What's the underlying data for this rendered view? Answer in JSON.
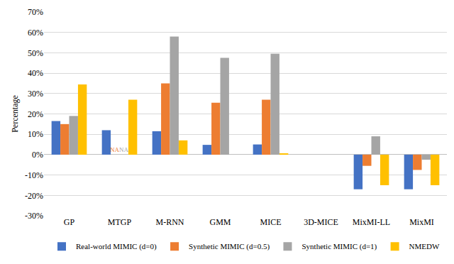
{
  "chart_data": {
    "type": "bar",
    "y_label": "Percentage",
    "categories": [
      "GP",
      "MTGP",
      "M-RNN",
      "GMM",
      "MICE",
      "3D-MICE",
      "MixMI-LL",
      "MixMI"
    ],
    "series": [
      {
        "name": "Real-world MIMIC (d=0)",
        "color": "#4472c4",
        "values": [
          16.5,
          12,
          11.5,
          4.8,
          5,
          0,
          -17,
          -17
        ]
      },
      {
        "name": "Synthetic MIMIC (d=0.5)",
        "color": "#ed7d31",
        "values": [
          15,
          null,
          35,
          25.5,
          27,
          0,
          -5.5,
          -7.5
        ]
      },
      {
        "name": "Synthetic MIMIC (d=1)",
        "color": "#a5a5a5",
        "values": [
          19,
          null,
          58,
          47.5,
          49.5,
          0,
          9,
          -2.5
        ]
      },
      {
        "name": "NMEDW",
        "color": "#ffc000",
        "values": [
          34.5,
          27,
          7,
          0,
          0.5,
          0,
          -15,
          -15
        ]
      }
    ],
    "annotations": [
      {
        "category": "MTGP",
        "series": "Synthetic MIMIC (d=0.5)",
        "text": "NA"
      },
      {
        "category": "MTGP",
        "series": "Synthetic MIMIC (d=1)",
        "text": "NA"
      }
    ],
    "ylim": [
      -30,
      70
    ],
    "yticks": [
      {
        "value": -30,
        "label": "-30%"
      },
      {
        "value": -20,
        "label": "-20%"
      },
      {
        "value": -10,
        "label": "-10%"
      },
      {
        "value": 0,
        "label": "0%"
      },
      {
        "value": 10,
        "label": "10%"
      },
      {
        "value": 20,
        "label": "20%"
      },
      {
        "value": 30,
        "label": "30%"
      },
      {
        "value": 40,
        "label": "40%"
      },
      {
        "value": 50,
        "label": "50%"
      },
      {
        "value": 60,
        "label": "60%"
      },
      {
        "value": 70,
        "label": "70%"
      }
    ],
    "grid": true,
    "legend": "bottom"
  }
}
